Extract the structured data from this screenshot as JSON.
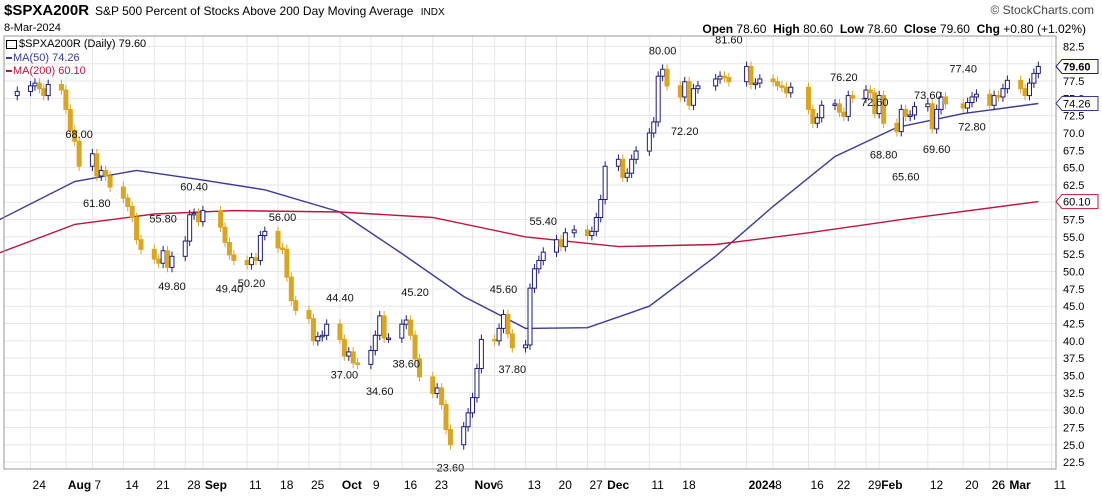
{
  "header": {
    "symbol": "$SPXA200R",
    "description": "S&P 500 Percent of Stocks Above 200 Day Moving Average",
    "exchange": "INDX",
    "date": "8-Mar-2024",
    "credit": "© StockCharts.com"
  },
  "ohlc": {
    "open_label": "Open",
    "open": "78.60",
    "high_label": "High",
    "high": "80.60",
    "low_label": "Low",
    "low": "78.60",
    "close_label": "Close",
    "close": "79.60",
    "chg_label": "Chg",
    "chg": "+0.80 (+1.02%)"
  },
  "legend": {
    "price": "$SPXA200R (Daily) 79.60",
    "ma50": "MA(50) 74.26",
    "ma200": "MA(200) 60.10"
  },
  "colors": {
    "up_candle": "#1c1c7c",
    "down_candle": "#daa520",
    "ma50": "#3a3a9a",
    "ma200": "#c0143c",
    "grid": "#e6e6e6"
  },
  "chart_data": {
    "type": "candlestick",
    "ylim": [
      21.5,
      84
    ],
    "y_ticks": [
      "82.5",
      "80.0",
      "77.5",
      "75.0",
      "72.5",
      "70.0",
      "67.5",
      "65.0",
      "62.5",
      "60.0",
      "57.5",
      "55.0",
      "52.5",
      "50.0",
      "47.5",
      "45.0",
      "42.5",
      "40.0",
      "37.5",
      "35.0",
      "32.5",
      "30.0",
      "27.5",
      "25.0",
      "22.5"
    ],
    "x_ticks": [
      "24",
      "Aug",
      "7",
      "14",
      "21",
      "28",
      "Sep",
      "11",
      "18",
      "25",
      "Oct",
      "9",
      "16",
      "23",
      "Nov",
      "6",
      "13",
      "20",
      "27",
      "Dec",
      "11",
      "18",
      "26",
      "2024",
      "8",
      "16",
      "22",
      "29",
      "Feb",
      "12",
      "20",
      "26",
      "Mar",
      "11"
    ],
    "bold_x_ticks": [
      "Aug",
      "Sep",
      "Oct",
      "Nov",
      "Dec",
      "2024",
      "Feb",
      "Mar"
    ],
    "price_markers": [
      {
        "label": "79.60",
        "value": 79.6
      },
      {
        "label": "74.26",
        "value": 74.26
      },
      {
        "label": "60.10",
        "value": 60.1
      }
    ],
    "annotations": [
      {
        "label": "68.00",
        "value": 68.0,
        "date": "2023-08-04",
        "pos": "above"
      },
      {
        "label": "61.80",
        "value": 61.8,
        "date": "2023-08-08",
        "pos": "below"
      },
      {
        "label": "55.80",
        "value": 55.8,
        "date": "2023-08-23",
        "pos": "above"
      },
      {
        "label": "60.40",
        "value": 60.4,
        "date": "2023-08-30",
        "pos": "above"
      },
      {
        "label": "49.80",
        "value": 49.8,
        "date": "2023-08-25",
        "pos": "below"
      },
      {
        "label": "49.40",
        "value": 49.4,
        "date": "2023-09-07",
        "pos": "below"
      },
      {
        "label": "50.20",
        "value": 50.2,
        "date": "2023-09-12",
        "pos": "below"
      },
      {
        "label": "56.00",
        "value": 56.0,
        "date": "2023-09-19",
        "pos": "above"
      },
      {
        "label": "44.40",
        "value": 44.4,
        "date": "2023-10-02",
        "pos": "above"
      },
      {
        "label": "37.00",
        "value": 37.0,
        "date": "2023-10-03",
        "pos": "below"
      },
      {
        "label": "34.60",
        "value": 34.6,
        "date": "2023-10-11",
        "pos": "below"
      },
      {
        "label": "38.60",
        "value": 38.6,
        "date": "2023-10-17",
        "pos": "below"
      },
      {
        "label": "45.20",
        "value": 45.2,
        "date": "2023-10-19",
        "pos": "above"
      },
      {
        "label": "23.60",
        "value": 23.6,
        "date": "2023-10-27",
        "pos": "below"
      },
      {
        "label": "45.60",
        "value": 45.6,
        "date": "2023-11-08",
        "pos": "above"
      },
      {
        "label": "37.80",
        "value": 37.8,
        "date": "2023-11-10",
        "pos": "below"
      },
      {
        "label": "55.40",
        "value": 55.4,
        "date": "2023-11-17",
        "pos": "above"
      },
      {
        "label": "80.00",
        "value": 80.0,
        "date": "2023-12-14",
        "pos": "above"
      },
      {
        "label": "72.20",
        "value": 72.2,
        "date": "2023-12-19",
        "pos": "below"
      },
      {
        "label": "81.60",
        "value": 81.6,
        "date": "2023-12-29",
        "pos": "above"
      },
      {
        "label": "76.20",
        "value": 76.2,
        "date": "2024-01-24",
        "pos": "above"
      },
      {
        "label": "72.60",
        "value": 72.6,
        "date": "2024-01-31",
        "pos": "above"
      },
      {
        "label": "68.80",
        "value": 68.8,
        "date": "2024-02-02",
        "pos": "below"
      },
      {
        "label": "65.60",
        "value": 65.6,
        "date": "2024-02-07",
        "pos": "below"
      },
      {
        "label": "73.60",
        "value": 73.6,
        "date": "2024-02-12",
        "pos": "above"
      },
      {
        "label": "69.60",
        "value": 69.6,
        "date": "2024-02-14",
        "pos": "below"
      },
      {
        "label": "77.40",
        "value": 77.4,
        "date": "2024-02-20",
        "pos": "above"
      },
      {
        "label": "72.80",
        "value": 72.8,
        "date": "2024-02-22",
        "pos": "below"
      }
    ],
    "series": [
      {
        "name": "$SPXA200R",
        "style": "candlestick",
        "daily_close": [
          [
            "2023-07-21",
            76.0
          ],
          [
            "2023-07-24",
            76.8
          ],
          [
            "2023-07-25",
            77.2
          ],
          [
            "2023-07-26",
            76.4
          ],
          [
            "2023-07-27",
            75.4
          ],
          [
            "2023-07-28",
            77.0
          ],
          [
            "2023-07-31",
            76.2
          ],
          [
            "2023-08-01",
            73.4
          ],
          [
            "2023-08-02",
            70.4
          ],
          [
            "2023-08-03",
            68.8
          ],
          [
            "2023-08-04",
            65.2
          ],
          [
            "2023-08-07",
            67.0
          ],
          [
            "2023-08-08",
            63.8
          ],
          [
            "2023-08-09",
            64.6
          ],
          [
            "2023-08-10",
            63.8
          ],
          [
            "2023-08-11",
            62.2
          ],
          [
            "2023-08-14",
            60.6
          ],
          [
            "2023-08-15",
            59.4
          ],
          [
            "2023-08-16",
            57.8
          ],
          [
            "2023-08-17",
            54.6
          ],
          [
            "2023-08-18",
            53.2
          ],
          [
            "2023-08-21",
            51.8
          ],
          [
            "2023-08-22",
            51.2
          ],
          [
            "2023-08-23",
            53.0
          ],
          [
            "2023-08-24",
            50.6
          ],
          [
            "2023-08-25",
            52.2
          ],
          [
            "2023-08-28",
            54.4
          ],
          [
            "2023-08-29",
            58.2
          ],
          [
            "2023-08-30",
            58.4
          ],
          [
            "2023-08-31",
            57.2
          ],
          [
            "2023-09-01",
            58.8
          ],
          [
            "2023-09-05",
            56.4
          ],
          [
            "2023-09-06",
            54.2
          ],
          [
            "2023-09-07",
            52.4
          ],
          [
            "2023-09-08",
            51.6
          ],
          [
            "2023-09-11",
            51.0
          ],
          [
            "2023-09-12",
            52.0
          ],
          [
            "2023-09-13",
            51.6
          ],
          [
            "2023-09-14",
            55.2
          ],
          [
            "2023-09-15",
            55.8
          ],
          [
            "2023-09-18",
            53.4
          ],
          [
            "2023-09-19",
            53.2
          ],
          [
            "2023-09-20",
            49.2
          ],
          [
            "2023-09-21",
            45.8
          ],
          [
            "2023-09-22",
            44.4
          ],
          [
            "2023-09-25",
            43.2
          ],
          [
            "2023-09-26",
            40.0
          ],
          [
            "2023-09-27",
            40.6
          ],
          [
            "2023-09-28",
            40.8
          ],
          [
            "2023-09-29",
            42.4
          ],
          [
            "2023-10-02",
            40.2
          ],
          [
            "2023-10-03",
            37.8
          ],
          [
            "2023-10-04",
            38.4
          ],
          [
            "2023-10-05",
            36.8
          ],
          [
            "2023-10-06",
            36.6
          ],
          [
            "2023-10-09",
            38.6
          ],
          [
            "2023-10-10",
            40.8
          ],
          [
            "2023-10-11",
            43.6
          ],
          [
            "2023-10-12",
            40.4
          ],
          [
            "2023-10-13",
            40.4
          ],
          [
            "2023-10-16",
            42.4
          ],
          [
            "2023-10-17",
            43.0
          ],
          [
            "2023-10-18",
            40.8
          ],
          [
            "2023-10-19",
            37.4
          ],
          [
            "2023-10-20",
            34.8
          ],
          [
            "2023-10-23",
            32.4
          ],
          [
            "2023-10-24",
            33.2
          ],
          [
            "2023-10-25",
            30.8
          ],
          [
            "2023-10-26",
            27.2
          ],
          [
            "2023-10-27",
            25.0
          ],
          [
            "2023-10-30",
            27.6
          ],
          [
            "2023-10-31",
            29.6
          ],
          [
            "2023-11-01",
            31.8
          ],
          [
            "2023-11-02",
            36.0
          ],
          [
            "2023-11-03",
            40.2
          ],
          [
            "2023-11-06",
            40.0
          ],
          [
            "2023-11-07",
            41.8
          ],
          [
            "2023-11-08",
            43.8
          ],
          [
            "2023-11-09",
            41.0
          ],
          [
            "2023-11-10",
            39.0
          ],
          [
            "2023-11-13",
            39.4
          ],
          [
            "2023-11-14",
            47.6
          ],
          [
            "2023-11-15",
            50.4
          ],
          [
            "2023-11-16",
            51.6
          ],
          [
            "2023-11-17",
            52.8
          ],
          [
            "2023-11-20",
            54.6
          ],
          [
            "2023-11-21",
            53.6
          ],
          [
            "2023-11-22",
            55.6
          ],
          [
            "2023-11-24",
            56.0
          ],
          [
            "2023-11-27",
            55.2
          ],
          [
            "2023-11-28",
            55.8
          ],
          [
            "2023-11-29",
            57.8
          ],
          [
            "2023-11-30",
            60.4
          ],
          [
            "2023-12-01",
            65.2
          ],
          [
            "2023-12-04",
            66.2
          ],
          [
            "2023-12-05",
            63.6
          ],
          [
            "2023-12-06",
            64.2
          ],
          [
            "2023-12-07",
            66.2
          ],
          [
            "2023-12-08",
            67.4
          ],
          [
            "2023-12-11",
            70.0
          ],
          [
            "2023-12-12",
            71.6
          ],
          [
            "2023-12-13",
            78.2
          ],
          [
            "2023-12-14",
            79.2
          ],
          [
            "2023-12-15",
            76.8
          ],
          [
            "2023-12-18",
            75.2
          ],
          [
            "2023-12-19",
            77.4
          ],
          [
            "2023-12-20",
            74.0
          ],
          [
            "2023-12-21",
            76.4
          ],
          [
            "2023-12-22",
            76.8
          ],
          [
            "2023-12-26",
            77.8
          ],
          [
            "2023-12-27",
            78.2
          ],
          [
            "2023-12-28",
            78.0
          ],
          [
            "2023-12-29",
            77.4
          ],
          [
            "2024-01-02",
            79.6
          ],
          [
            "2024-01-03",
            77.0
          ],
          [
            "2024-01-04",
            77.2
          ],
          [
            "2024-01-05",
            77.8
          ],
          [
            "2024-01-08",
            77.4
          ],
          [
            "2024-01-09",
            76.8
          ],
          [
            "2024-01-10",
            76.6
          ],
          [
            "2024-01-11",
            75.8
          ],
          [
            "2024-01-12",
            76.6
          ],
          [
            "2024-01-16",
            73.4
          ],
          [
            "2024-01-17",
            71.4
          ],
          [
            "2024-01-18",
            72.2
          ],
          [
            "2024-01-19",
            74.0
          ],
          [
            "2024-01-22",
            74.2
          ],
          [
            "2024-01-23",
            73.0
          ],
          [
            "2024-01-24",
            72.4
          ],
          [
            "2024-01-25",
            75.4
          ],
          [
            "2024-01-26",
            75.0
          ],
          [
            "2024-01-29",
            76.2
          ],
          [
            "2024-01-30",
            75.8
          ],
          [
            "2024-01-31",
            72.8
          ],
          [
            "2024-02-01",
            75.4
          ],
          [
            "2024-02-02",
            71.4
          ],
          [
            "2024-02-05",
            70.2
          ],
          [
            "2024-02-06",
            73.4
          ],
          [
            "2024-02-07",
            72.4
          ],
          [
            "2024-02-08",
            72.6
          ],
          [
            "2024-02-09",
            73.8
          ],
          [
            "2024-02-12",
            74.2
          ],
          [
            "2024-02-13",
            70.6
          ],
          [
            "2024-02-14",
            73.4
          ],
          [
            "2024-02-15",
            75.2
          ],
          [
            "2024-02-16",
            74.2
          ],
          [
            "2024-02-20",
            73.6
          ],
          [
            "2024-02-21",
            74.4
          ],
          [
            "2024-02-22",
            75.2
          ],
          [
            "2024-02-23",
            75.6
          ],
          [
            "2024-02-26",
            74.0
          ],
          [
            "2024-02-27",
            75.4
          ],
          [
            "2024-02-28",
            75.2
          ],
          [
            "2024-02-29",
            76.4
          ],
          [
            "2024-03-01",
            77.6
          ],
          [
            "2024-03-04",
            76.4
          ],
          [
            "2024-03-05",
            75.4
          ],
          [
            "2024-03-06",
            77.2
          ],
          [
            "2024-03-07",
            78.6
          ],
          [
            "2024-03-08",
            79.6
          ]
        ]
      },
      {
        "name": "MA(50)",
        "style": "line",
        "points": [
          [
            "2023-07-17",
            57.5
          ],
          [
            "2023-08-03",
            63.0
          ],
          [
            "2023-08-17",
            64.6
          ],
          [
            "2023-09-01",
            63.2
          ],
          [
            "2023-09-15",
            61.8
          ],
          [
            "2023-10-02",
            58.6
          ],
          [
            "2023-10-16",
            52.6
          ],
          [
            "2023-10-30",
            46.4
          ],
          [
            "2023-11-13",
            41.8
          ],
          [
            "2023-11-27",
            41.9
          ],
          [
            "2023-12-11",
            45.0
          ],
          [
            "2023-12-26",
            52.2
          ],
          [
            "2024-01-08",
            59.4
          ],
          [
            "2024-01-22",
            66.6
          ],
          [
            "2024-02-05",
            70.8
          ],
          [
            "2024-02-20",
            72.8
          ],
          [
            "2024-03-08",
            74.26
          ]
        ]
      },
      {
        "name": "MA(200)",
        "style": "line",
        "points": [
          [
            "2023-07-17",
            52.7
          ],
          [
            "2023-08-03",
            56.8
          ],
          [
            "2023-08-21",
            58.3
          ],
          [
            "2023-09-08",
            58.8
          ],
          [
            "2023-10-02",
            58.6
          ],
          [
            "2023-10-23",
            57.8
          ],
          [
            "2023-11-13",
            55.0
          ],
          [
            "2023-12-04",
            53.6
          ],
          [
            "2023-12-26",
            53.9
          ],
          [
            "2024-01-16",
            55.6
          ],
          [
            "2024-02-07",
            57.6
          ],
          [
            "2024-03-08",
            60.1
          ]
        ]
      }
    ]
  }
}
